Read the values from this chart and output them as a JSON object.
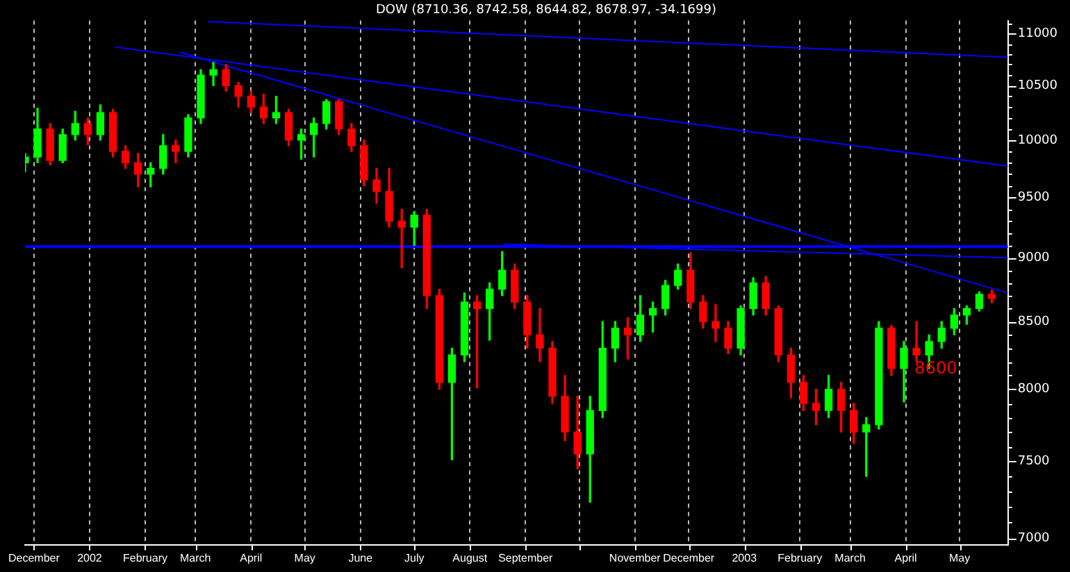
{
  "chart_data": {
    "type": "candlestick",
    "title": "DOW (8710.36, 8742.58, 8644.82, 8678.97, -34.1699)",
    "x": [
      "2001-11-26",
      "2001-12-03",
      "2001-12-10",
      "2001-12-17",
      "2001-12-24",
      "2001-12-31",
      "2002-01-07",
      "2002-01-14",
      "2002-01-21",
      "2002-01-28",
      "2002-02-04",
      "2002-02-11",
      "2002-02-18",
      "2002-02-25",
      "2002-03-04",
      "2002-03-11",
      "2002-03-18",
      "2002-03-25",
      "2002-04-01",
      "2002-04-08",
      "2002-04-15",
      "2002-04-22",
      "2002-04-29",
      "2002-05-06",
      "2002-05-13",
      "2002-05-20",
      "2002-05-27",
      "2002-06-03",
      "2002-06-10",
      "2002-06-17",
      "2002-06-24",
      "2002-07-01",
      "2002-07-08",
      "2002-07-15",
      "2002-07-22",
      "2002-07-29",
      "2002-08-05",
      "2002-08-12",
      "2002-08-19",
      "2002-08-26",
      "2002-09-02",
      "2002-09-09",
      "2002-09-16",
      "2002-09-23",
      "2002-09-30",
      "2002-10-07",
      "2002-10-14",
      "2002-10-21",
      "2002-10-28",
      "2002-11-04",
      "2002-11-11",
      "2002-11-18",
      "2002-11-25",
      "2002-12-02",
      "2002-12-09",
      "2002-12-16",
      "2002-12-23",
      "2002-12-30",
      "2003-01-06",
      "2003-01-13",
      "2003-01-20",
      "2003-01-27",
      "2003-02-03",
      "2003-02-10",
      "2003-02-17",
      "2003-02-24",
      "2003-03-03",
      "2003-03-10",
      "2003-03-17",
      "2003-03-24",
      "2003-03-31",
      "2003-04-07",
      "2003-04-14",
      "2003-04-21",
      "2003-04-28",
      "2003-05-05",
      "2003-05-12",
      "2003-05-19"
    ],
    "ohlc": [
      [
        9800,
        9880,
        9720,
        9850
      ],
      [
        9850,
        10290,
        9800,
        10100
      ],
      [
        10100,
        10150,
        9780,
        9820
      ],
      [
        9820,
        10100,
        9800,
        10050
      ],
      [
        10050,
        10260,
        10000,
        10150
      ],
      [
        10150,
        10200,
        9960,
        10050
      ],
      [
        10050,
        10320,
        10000,
        10250
      ],
      [
        10250,
        10280,
        9850,
        9900
      ],
      [
        9900,
        9950,
        9750,
        9800
      ],
      [
        9800,
        9880,
        9590,
        9700
      ],
      [
        9700,
        9800,
        9590,
        9750
      ],
      [
        9750,
        10050,
        9700,
        9950
      ],
      [
        9950,
        10000,
        9800,
        9900
      ],
      [
        9900,
        10230,
        9850,
        10200
      ],
      [
        10200,
        10650,
        10150,
        10600
      ],
      [
        10600,
        10720,
        10500,
        10650
      ],
      [
        10650,
        10700,
        10450,
        10500
      ],
      [
        10500,
        10530,
        10300,
        10400
      ],
      [
        10400,
        10450,
        10250,
        10300
      ],
      [
        10300,
        10420,
        10150,
        10200
      ],
      [
        10200,
        10400,
        10150,
        10250
      ],
      [
        10250,
        10280,
        9950,
        10000
      ],
      [
        10000,
        10100,
        9830,
        10050
      ],
      [
        10050,
        10200,
        9850,
        10150
      ],
      [
        10150,
        10370,
        10100,
        10350
      ],
      [
        10350,
        10370,
        10050,
        10100
      ],
      [
        10100,
        10150,
        9900,
        9950
      ],
      [
        9950,
        10000,
        9600,
        9650
      ],
      [
        9650,
        9750,
        9450,
        9550
      ],
      [
        9550,
        9750,
        9250,
        9300
      ],
      [
        9300,
        9400,
        8920,
        9250
      ],
      [
        9250,
        9380,
        9100,
        9350
      ],
      [
        9350,
        9400,
        8600,
        8700
      ],
      [
        8700,
        8750,
        8000,
        8050
      ],
      [
        8050,
        8300,
        7510,
        8250
      ],
      [
        8250,
        8720,
        8200,
        8650
      ],
      [
        8650,
        8700,
        8010,
        8600
      ],
      [
        8600,
        8800,
        8360,
        8750
      ],
      [
        8750,
        9050,
        8700,
        8900
      ],
      [
        8900,
        8950,
        8600,
        8650
      ],
      [
        8650,
        8700,
        8300,
        8400
      ],
      [
        8400,
        8600,
        8200,
        8300
      ],
      [
        8300,
        8350,
        7900,
        7950
      ],
      [
        7950,
        8100,
        7640,
        7700
      ],
      [
        7700,
        7950,
        7450,
        7550
      ],
      [
        7550,
        7950,
        7230,
        7850
      ],
      [
        7850,
        8500,
        7800,
        8300
      ],
      [
        8300,
        8500,
        8200,
        8450
      ],
      [
        8450,
        8530,
        8220,
        8400
      ],
      [
        8400,
        8700,
        8350,
        8550
      ],
      [
        8550,
        8650,
        8420,
        8600
      ],
      [
        8600,
        8820,
        8550,
        8780
      ],
      [
        8780,
        8950,
        8750,
        8900
      ],
      [
        8900,
        9040,
        8600,
        8650
      ],
      [
        8650,
        8700,
        8450,
        8500
      ],
      [
        8500,
        8630,
        8350,
        8450
      ],
      [
        8450,
        8500,
        8260,
        8300
      ],
      [
        8300,
        8620,
        8250,
        8600
      ],
      [
        8600,
        8840,
        8550,
        8800
      ],
      [
        8800,
        8850,
        8550,
        8600
      ],
      [
        8600,
        8620,
        8200,
        8250
      ],
      [
        8250,
        8300,
        7940,
        8050
      ],
      [
        8050,
        8100,
        7850,
        7900
      ],
      [
        7900,
        8000,
        7750,
        7850
      ],
      [
        7850,
        8100,
        7800,
        8000
      ],
      [
        8000,
        8050,
        7700,
        7850
      ],
      [
        7850,
        7900,
        7620,
        7700
      ],
      [
        7700,
        7800,
        7400,
        7750
      ],
      [
        7750,
        8500,
        7720,
        8450
      ],
      [
        8450,
        8470,
        8100,
        8150
      ],
      [
        8150,
        8350,
        7910,
        8300
      ],
      [
        8300,
        8500,
        8200,
        8250
      ],
      [
        8250,
        8400,
        8150,
        8350
      ],
      [
        8350,
        8500,
        8300,
        8450
      ],
      [
        8450,
        8600,
        8400,
        8550
      ],
      [
        8550,
        8620,
        8480,
        8600
      ],
      [
        8600,
        8730,
        8580,
        8710
      ],
      [
        8710.36,
        8742.58,
        8644.82,
        8678.97
      ]
    ],
    "series": [
      {
        "type": "line",
        "color": "#0000ff",
        "x": [
          "2002-03-08",
          "2003-05-28"
        ],
        "values": [
          11120,
          10770
        ]
      },
      {
        "type": "line",
        "color": "#0000ff",
        "x": [
          "2002-01-15",
          "2003-05-28"
        ],
        "values": [
          10870,
          9770
        ]
      },
      {
        "type": "line",
        "color": "#0000ff",
        "x": [
          "2002-02-20",
          "2003-05-28"
        ],
        "values": [
          10820,
          8720
        ]
      },
      {
        "type": "line",
        "color": "#0000ff",
        "x": [
          "2002-08-20",
          "2003-05-28"
        ],
        "values": [
          9110,
          9000
        ]
      }
    ],
    "ref_lines": [
      {
        "axis": "y",
        "value": 9090,
        "color": "#0000ff"
      }
    ],
    "annotations": [
      "8600"
    ],
    "xlim": [
      "2001-11-26",
      "2003-05-28"
    ],
    "xticks": [
      {
        "value": "2001-12-01",
        "label": "December"
      },
      {
        "value": "2002-01-01",
        "label": "2002"
      },
      {
        "value": "2002-02-01",
        "label": "February"
      },
      {
        "value": "2002-03-01",
        "label": "March"
      },
      {
        "value": "2002-04-01",
        "label": "April"
      },
      {
        "value": "2002-05-01",
        "label": "May"
      },
      {
        "value": "2002-06-01",
        "label": "June"
      },
      {
        "value": "2002-07-01",
        "label": "July"
      },
      {
        "value": "2002-08-01",
        "label": "August"
      },
      {
        "value": "2002-09-01",
        "label": "September"
      },
      {
        "value": "2002-10-01",
        "label": null
      },
      {
        "value": "2002-11-01",
        "label": "November"
      },
      {
        "value": "2002-12-01",
        "label": "December"
      },
      {
        "value": "2003-01-01",
        "label": "2003"
      },
      {
        "value": "2003-02-01",
        "label": "February"
      },
      {
        "value": "2003-03-01",
        "label": "March"
      },
      {
        "value": "2003-04-01",
        "label": "April"
      },
      {
        "value": "2003-05-01",
        "label": "May"
      }
    ],
    "log": true,
    "ylim": [
      6960,
      11130
    ],
    "yticks": [
      7000,
      {
        "value": 7100,
        "label": null
      },
      {
        "value": 7200,
        "label": null
      },
      {
        "value": 7300,
        "label": null
      },
      {
        "value": 7400,
        "label": null
      },
      7500,
      {
        "value": 7600,
        "label": null
      },
      {
        "value": 7700,
        "label": null
      },
      {
        "value": 7800,
        "label": null
      },
      {
        "value": 7900,
        "label": null
      },
      8000,
      {
        "value": 8100,
        "label": null
      },
      {
        "value": 8200,
        "label": null
      },
      {
        "value": 8300,
        "label": null
      },
      {
        "value": 8400,
        "label": null
      },
      8500,
      {
        "value": 8600,
        "label": null
      },
      {
        "value": 8700,
        "label": null
      },
      {
        "value": 8800,
        "label": null
      },
      {
        "value": 8900,
        "label": null
      },
      9000,
      {
        "value": 9100,
        "label": null
      },
      {
        "value": 9200,
        "label": null
      },
      {
        "value": 9300,
        "label": null
      },
      {
        "value": 9400,
        "label": null
      },
      9500,
      {
        "value": 9600,
        "label": null
      },
      {
        "value": 9700,
        "label": null
      },
      {
        "value": 9800,
        "label": null
      },
      {
        "value": 9900,
        "label": null
      },
      10000,
      {
        "value": 10100,
        "label": null
      },
      {
        "value": 10200,
        "label": null
      },
      {
        "value": 10300,
        "label": null
      },
      {
        "value": 10400,
        "label": null
      },
      10500,
      {
        "value": 10600,
        "label": null
      },
      {
        "value": 10700,
        "label": null
      },
      {
        "value": 10800,
        "label": null
      },
      {
        "value": 10900,
        "label": null
      },
      11000,
      {
        "value": 11100,
        "label": null
      }
    ],
    "grid": "x"
  }
}
